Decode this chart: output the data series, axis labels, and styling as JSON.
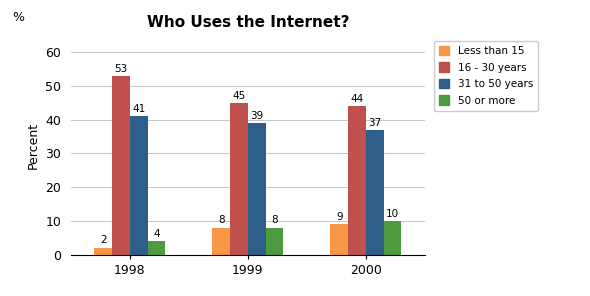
{
  "title": "Who Uses the Internet?",
  "ylabel": "Percent",
  "percent_label": "%",
  "years": [
    "1998",
    "1999",
    "2000"
  ],
  "categories": [
    "Less than 15",
    "16 - 30 years",
    "31 to 50 years",
    "50 or more"
  ],
  "colors": [
    "#F79646",
    "#C0504D",
    "#2E5F8A",
    "#4E9A3F"
  ],
  "values": {
    "Less than 15": [
      2,
      8,
      9
    ],
    "16 - 30 years": [
      53,
      45,
      44
    ],
    "31 to 50 years": [
      41,
      39,
      37
    ],
    "50 or more": [
      4,
      8,
      10
    ]
  },
  "ylim": [
    0,
    65
  ],
  "yticks": [
    0,
    10,
    20,
    30,
    40,
    50,
    60
  ],
  "bar_width": 0.15,
  "background_color": "#FFFFFF",
  "grid_color": "#BBBBBB",
  "title_fontsize": 11,
  "axis_label_fontsize": 9,
  "tick_fontsize": 9,
  "bar_label_fontsize": 7.5
}
